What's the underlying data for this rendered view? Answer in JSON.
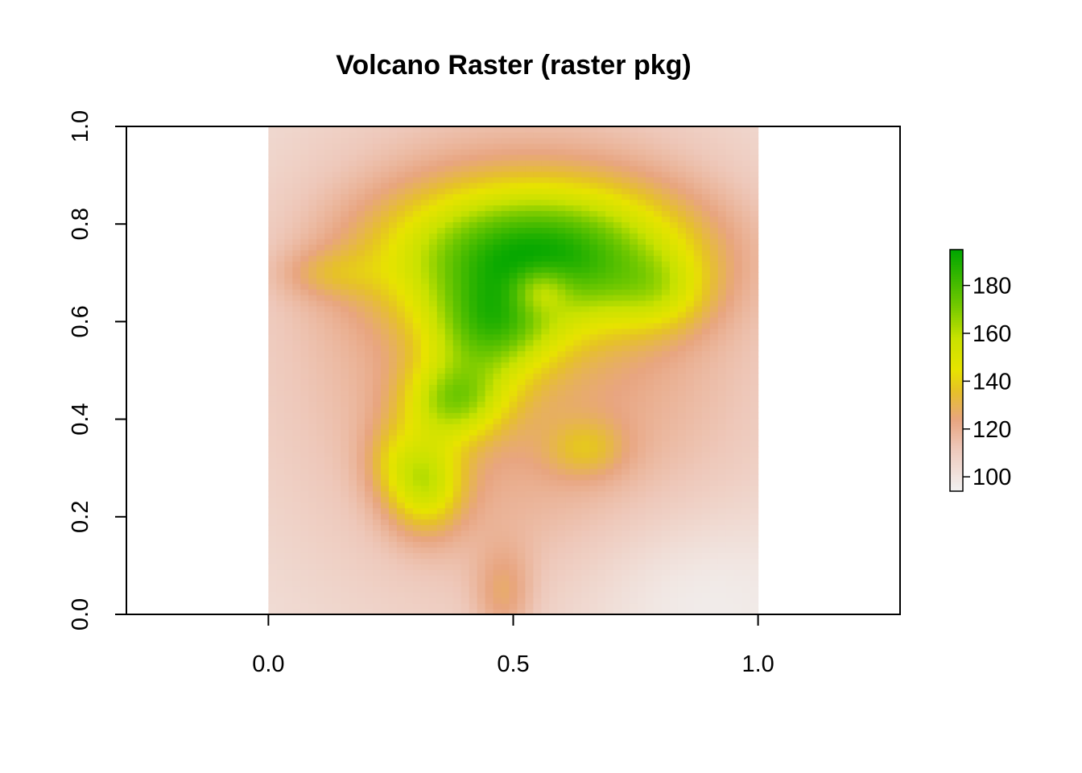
{
  "chart_data": {
    "type": "heatmap",
    "title": "Volcano Raster (raster pkg)",
    "xlabel": "",
    "ylabel": "",
    "xlim": [
      -0.29,
      1.29
    ],
    "ylim": [
      0,
      1
    ],
    "raster_extent": {
      "x": [
        0,
        1
      ],
      "y": [
        0,
        1
      ]
    },
    "x_ticks": [
      {
        "value": 0.0,
        "label": "0.0"
      },
      {
        "value": 0.5,
        "label": "0.5"
      },
      {
        "value": 1.0,
        "label": "1.0"
      }
    ],
    "y_ticks": [
      {
        "value": 0.0,
        "label": "0.0"
      },
      {
        "value": 0.2,
        "label": "0.2"
      },
      {
        "value": 0.4,
        "label": "0.4"
      },
      {
        "value": 0.6,
        "label": "0.6"
      },
      {
        "value": 0.8,
        "label": "0.8"
      },
      {
        "value": 1.0,
        "label": "1.0"
      }
    ],
    "value_range": [
      94,
      195
    ],
    "colorbar": {
      "ticks": [
        {
          "value": 100,
          "label": "100"
        },
        {
          "value": 120,
          "label": "120"
        },
        {
          "value": 140,
          "label": "140"
        },
        {
          "value": 160,
          "label": "160"
        },
        {
          "value": 180,
          "label": "180"
        }
      ],
      "colors": [
        {
          "value": 94,
          "color": "#F2F2F2"
        },
        {
          "value": 112,
          "color": "#EEC8BA"
        },
        {
          "value": 124,
          "color": "#E8A580"
        },
        {
          "value": 136,
          "color": "#E6C128"
        },
        {
          "value": 145,
          "color": "#E7E300"
        },
        {
          "value": 158,
          "color": "#C9E200"
        },
        {
          "value": 172,
          "color": "#71C800"
        },
        {
          "value": 195,
          "color": "#00A600"
        }
      ]
    },
    "grid": false,
    "legend": "right"
  }
}
